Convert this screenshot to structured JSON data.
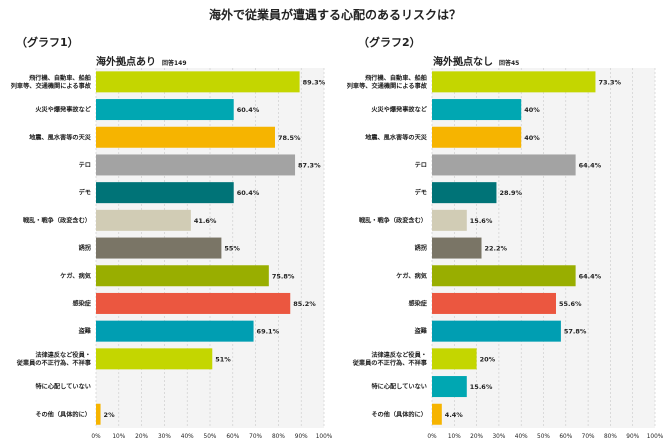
{
  "title": "海外で従業員が遭遇する心配のあるリスクは？",
  "colors": [
    "#c4d600",
    "#00a7b2",
    "#f6b400",
    "#a3a3a3",
    "#007377",
    "#d1ccb5",
    "#7a7566",
    "#99ae00",
    "#eb5740",
    "#009eb2",
    "#c4d600",
    "#00a7b2",
    "#f6b400"
  ],
  "chart_data": [
    {
      "type": "bar",
      "orientation": "horizontal",
      "graph_label": "（グラフ1）",
      "title": "海外拠点あり",
      "respondents": "回答149",
      "categories": [
        "飛行機、自動車、船舶\n列車等、交通機関による事故",
        "火災や爆発事故など",
        "地震、風水害等の天災",
        "テロ",
        "デモ",
        "戦乱・戦争（政変含む）",
        "誘拐",
        "ケガ、病気",
        "感染症",
        "盗難",
        "法律違反など役員・\n従業員の不正行為、不祥事",
        "特に心配していない",
        "その他（具体的に）"
      ],
      "values": [
        89.3,
        60.4,
        78.5,
        87.3,
        60.4,
        41.6,
        55,
        75.8,
        85.2,
        69.1,
        51,
        0,
        2
      ],
      "value_labels": [
        "89.3%",
        "60.4%",
        "78.5%",
        "87.3%",
        "60.4%",
        "41.6%",
        "55%",
        "75.8%",
        "85.2%",
        "69.1%",
        "51%",
        "",
        "2%"
      ],
      "xlim": [
        0,
        100
      ],
      "ticks": [
        "0%",
        "10%",
        "20%",
        "30%",
        "40%",
        "50%",
        "60%",
        "70%",
        "80%",
        "90%",
        "100%"
      ]
    },
    {
      "type": "bar",
      "orientation": "horizontal",
      "graph_label": "（グラフ2）",
      "title": "海外拠点なし",
      "respondents": "回答45",
      "categories": [
        "飛行機、自動車、船舶\n列車等、交通機関による事故",
        "火災や爆発事故など",
        "地震、風水害等の天災",
        "テロ",
        "デモ",
        "戦乱・戦争（政変含む）",
        "誘拐",
        "ケガ、病気",
        "感染症",
        "盗難",
        "法律違反など役員・\n従業員の不正行為、不祥事",
        "特に心配していない",
        "その他（具体的に）"
      ],
      "values": [
        73.3,
        40,
        40,
        64.4,
        28.9,
        15.6,
        22.2,
        64.4,
        55.6,
        57.8,
        20,
        15.6,
        4.4
      ],
      "value_labels": [
        "73.3%",
        "40%",
        "40%",
        "64.4%",
        "28.9%",
        "15.6%",
        "22.2%",
        "64.4%",
        "55.6%",
        "57.8%",
        "20%",
        "15.6%",
        "4.4%"
      ],
      "xlim": [
        0,
        100
      ],
      "ticks": [
        "0%",
        "10%",
        "20%",
        "30%",
        "40%",
        "50%",
        "60%",
        "70%",
        "80%",
        "90%",
        "100%"
      ]
    }
  ]
}
